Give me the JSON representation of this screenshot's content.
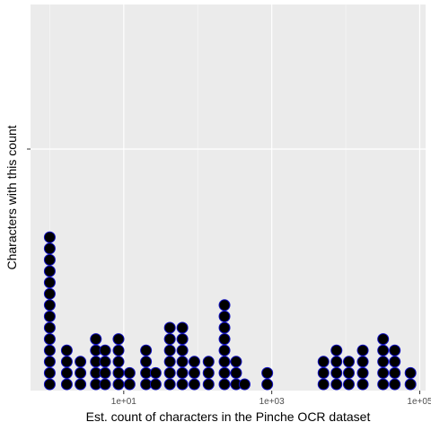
{
  "chart_data": {
    "type": "dotplot",
    "xlabel": "Est. count of characters in the Pinche OCR dataset",
    "ylabel": "Characters with this count",
    "x_scale": "log10",
    "xlim": [
      0.55,
      120000
    ],
    "x_ticks": [
      {
        "value": 10,
        "label": "1e+01"
      },
      {
        "value": 1000,
        "label": "1e+03"
      },
      {
        "value": 100000,
        "label": "1e+05"
      }
    ],
    "grid": true,
    "dot_fill": "#000000",
    "dot_stroke": "#1010c0",
    "panel_background": "#ebebeb",
    "stacks": [
      {
        "x": 1,
        "count": 14
      },
      {
        "x": 1.7,
        "count": 4
      },
      {
        "x": 2.6,
        "count": 3
      },
      {
        "x": 4.2,
        "count": 5
      },
      {
        "x": 5.6,
        "count": 4
      },
      {
        "x": 8.5,
        "count": 5
      },
      {
        "x": 12,
        "count": 2
      },
      {
        "x": 20,
        "count": 4
      },
      {
        "x": 27,
        "count": 2
      },
      {
        "x": 42,
        "count": 6
      },
      {
        "x": 62,
        "count": 6
      },
      {
        "x": 90,
        "count": 3
      },
      {
        "x": 140,
        "count": 3
      },
      {
        "x": 230,
        "count": 8
      },
      {
        "x": 330,
        "count": 3
      },
      {
        "x": 430,
        "count": 1
      },
      {
        "x": 870,
        "count": 2
      },
      {
        "x": 5000,
        "count": 3
      },
      {
        "x": 7500,
        "count": 4
      },
      {
        "x": 11000,
        "count": 3
      },
      {
        "x": 17000,
        "count": 4
      },
      {
        "x": 32000,
        "count": 5
      },
      {
        "x": 46000,
        "count": 4
      },
      {
        "x": 75000,
        "count": 2
      }
    ]
  }
}
